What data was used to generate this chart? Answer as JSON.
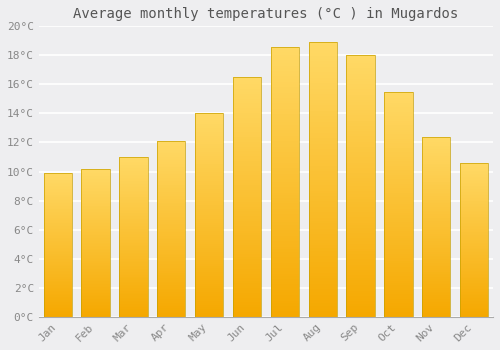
{
  "title": "Average monthly temperatures (°C ) in Mugardos",
  "months": [
    "Jan",
    "Feb",
    "Mar",
    "Apr",
    "May",
    "Jun",
    "Jul",
    "Aug",
    "Sep",
    "Oct",
    "Nov",
    "Dec"
  ],
  "values": [
    9.9,
    10.2,
    11.0,
    12.1,
    14.0,
    16.5,
    18.6,
    18.9,
    18.0,
    15.5,
    12.4,
    10.6
  ],
  "bar_color_bottom": "#F5A800",
  "bar_color_top": "#FFD966",
  "bar_edge_color": "#C8A000",
  "background_color": "#EEEEF0",
  "plot_bg_color": "#EEEEF0",
  "grid_color": "#FFFFFF",
  "tick_label_color": "#888888",
  "title_color": "#555555",
  "ylim": [
    0,
    20
  ],
  "yticks": [
    0,
    2,
    4,
    6,
    8,
    10,
    12,
    14,
    16,
    18,
    20
  ],
  "ytick_labels": [
    "0°C",
    "2°C",
    "4°C",
    "6°C",
    "8°C",
    "10°C",
    "12°C",
    "14°C",
    "16°C",
    "18°C",
    "20°C"
  ],
  "title_fontsize": 10,
  "tick_fontsize": 8,
  "bar_width": 0.75
}
